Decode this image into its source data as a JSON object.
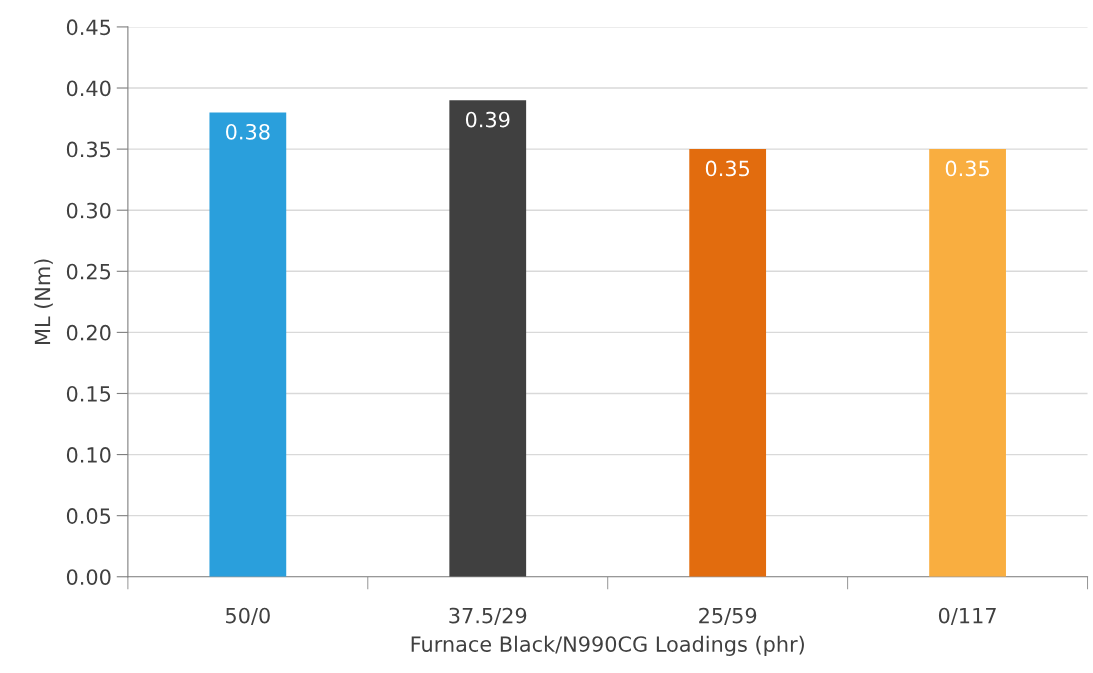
{
  "chart_data": {
    "type": "bar",
    "xlabel": "Furnace Black/N990CG Loadings (phr)",
    "ylabel": "ML (Nm)",
    "categories": [
      "50/0",
      "37.5/29",
      "25/59",
      "0/117"
    ],
    "values": [
      0.38,
      0.39,
      0.35,
      0.35
    ],
    "colors": [
      "#2a9fdc",
      "#404040",
      "#e26c0e",
      "#f9ae40"
    ],
    "ylim": [
      0,
      0.45
    ],
    "yticks": [
      {
        "value": 0,
        "label": "0.00"
      },
      {
        "value": 0.05,
        "label": "0.05"
      },
      {
        "value": 0.1,
        "label": "0.10"
      },
      {
        "value": 0.15,
        "label": "0.15"
      },
      {
        "value": 0.2,
        "label": "0.20"
      },
      {
        "value": 0.25,
        "label": "0.25"
      },
      {
        "value": 0.3,
        "label": "0.30"
      },
      {
        "value": 0.35,
        "label": "0.35"
      },
      {
        "value": 0.4,
        "label": "0.40"
      },
      {
        "value": 0.45,
        "label": "0.45"
      }
    ],
    "grid": "y",
    "data_labels": true
  }
}
